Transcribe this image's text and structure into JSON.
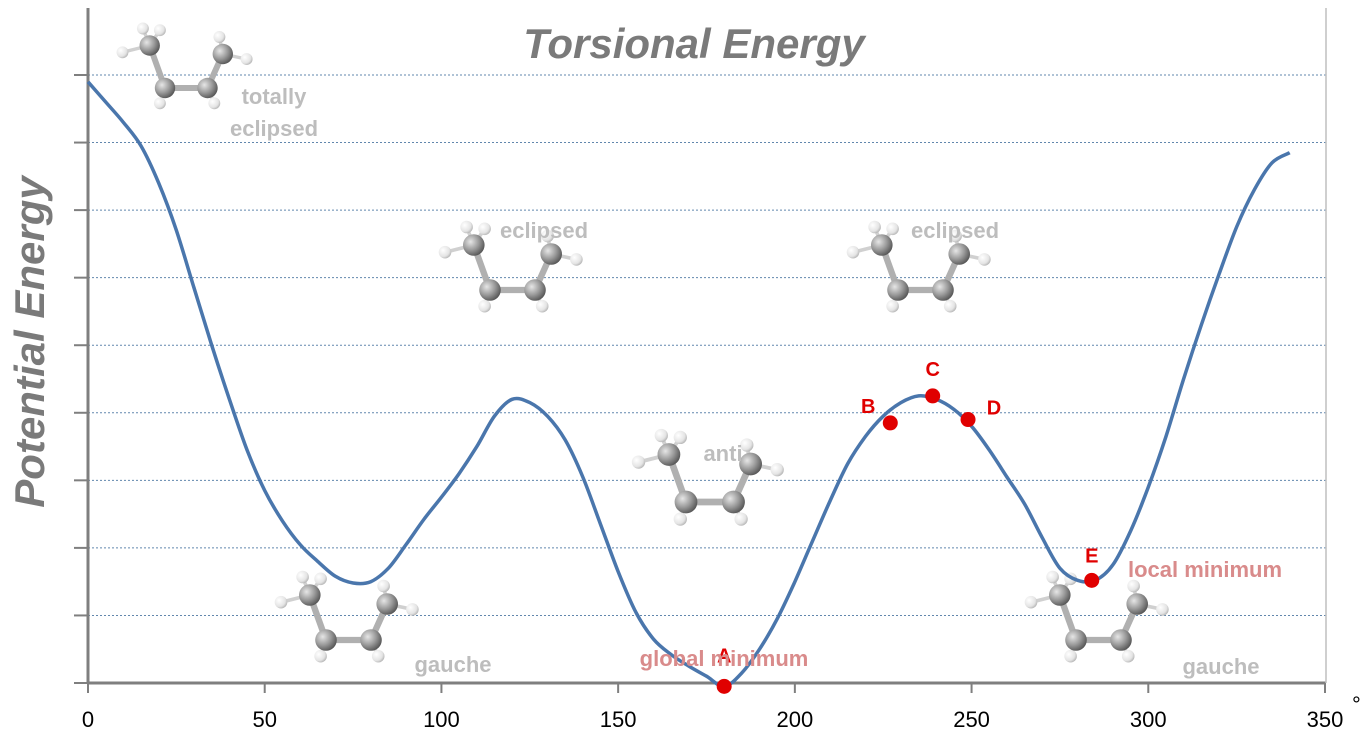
{
  "chart_data": {
    "type": "line",
    "title": "Torsional Energy",
    "xlabel": "",
    "ylabel": "Potential Energy",
    "xlim": [
      0,
      350
    ],
    "ylim": [
      0,
      9
    ],
    "grid": true,
    "x_ticks": [
      "0",
      "50",
      "100",
      "150",
      "200",
      "250",
      "300",
      "350"
    ],
    "x_unit": "°",
    "series": [
      {
        "name": "Torsional energy",
        "color": "#4a76ac",
        "x": [
          0,
          5,
          10,
          15,
          20,
          25,
          30,
          35,
          40,
          45,
          50,
          55,
          60,
          65,
          70,
          75,
          80,
          85,
          90,
          95,
          100,
          105,
          110,
          115,
          120,
          125,
          130,
          135,
          140,
          145,
          150,
          155,
          160,
          165,
          170,
          175,
          180,
          185,
          190,
          195,
          200,
          205,
          210,
          215,
          220,
          225,
          230,
          235,
          240,
          245,
          250,
          255,
          260,
          265,
          270,
          275,
          280,
          285,
          290,
          295,
          300,
          305,
          310,
          315,
          320,
          325,
          330,
          335,
          340
        ],
        "y": [
          8.9,
          8.6,
          8.3,
          7.95,
          7.4,
          6.7,
          5.85,
          5.0,
          4.2,
          3.45,
          2.85,
          2.4,
          2.05,
          1.8,
          1.58,
          1.48,
          1.5,
          1.7,
          2.05,
          2.42,
          2.75,
          3.1,
          3.5,
          3.95,
          4.2,
          4.15,
          3.95,
          3.6,
          3.05,
          2.35,
          1.65,
          1.05,
          0.65,
          0.42,
          0.25,
          0.1,
          -0.05,
          0.15,
          0.5,
          0.95,
          1.5,
          2.1,
          2.7,
          3.25,
          3.65,
          3.95,
          4.15,
          4.25,
          4.2,
          4.05,
          3.8,
          3.45,
          3.05,
          2.65,
          2.15,
          1.7,
          1.52,
          1.52,
          1.75,
          2.25,
          2.9,
          3.65,
          4.5,
          5.3,
          6.05,
          6.75,
          7.3,
          7.7,
          7.85
        ]
      }
    ],
    "points": [
      {
        "label": "A",
        "x": 180,
        "y": -0.05,
        "color": "#e00000"
      },
      {
        "label": "B",
        "x": 227,
        "y": 3.85,
        "color": "#e00000"
      },
      {
        "label": "C",
        "x": 239,
        "y": 4.25,
        "color": "#e00000"
      },
      {
        "label": "D",
        "x": 249,
        "y": 3.9,
        "color": "#e00000"
      },
      {
        "label": "E",
        "x": 284,
        "y": 1.52,
        "color": "#e00000"
      }
    ],
    "annotations": [
      {
        "text": "global minimum",
        "color": "#d98b8b"
      },
      {
        "text": "local minimum",
        "color": "#d98b8b"
      }
    ],
    "conformations": [
      {
        "lines": [
          "totally",
          "eclipsed"
        ]
      },
      {
        "lines": [
          "eclipsed"
        ]
      },
      {
        "lines": [
          "eclipsed"
        ]
      },
      {
        "lines": [
          "anti"
        ]
      },
      {
        "lines": [
          "gauche"
        ]
      },
      {
        "lines": [
          "gauche"
        ]
      }
    ]
  },
  "colors": {
    "axis": "#7f7f7f",
    "grid": "#3b6a99",
    "title": "#7a7a7a",
    "carbon": "#9a9a9a",
    "hydrogen": "#e8e8e8"
  }
}
